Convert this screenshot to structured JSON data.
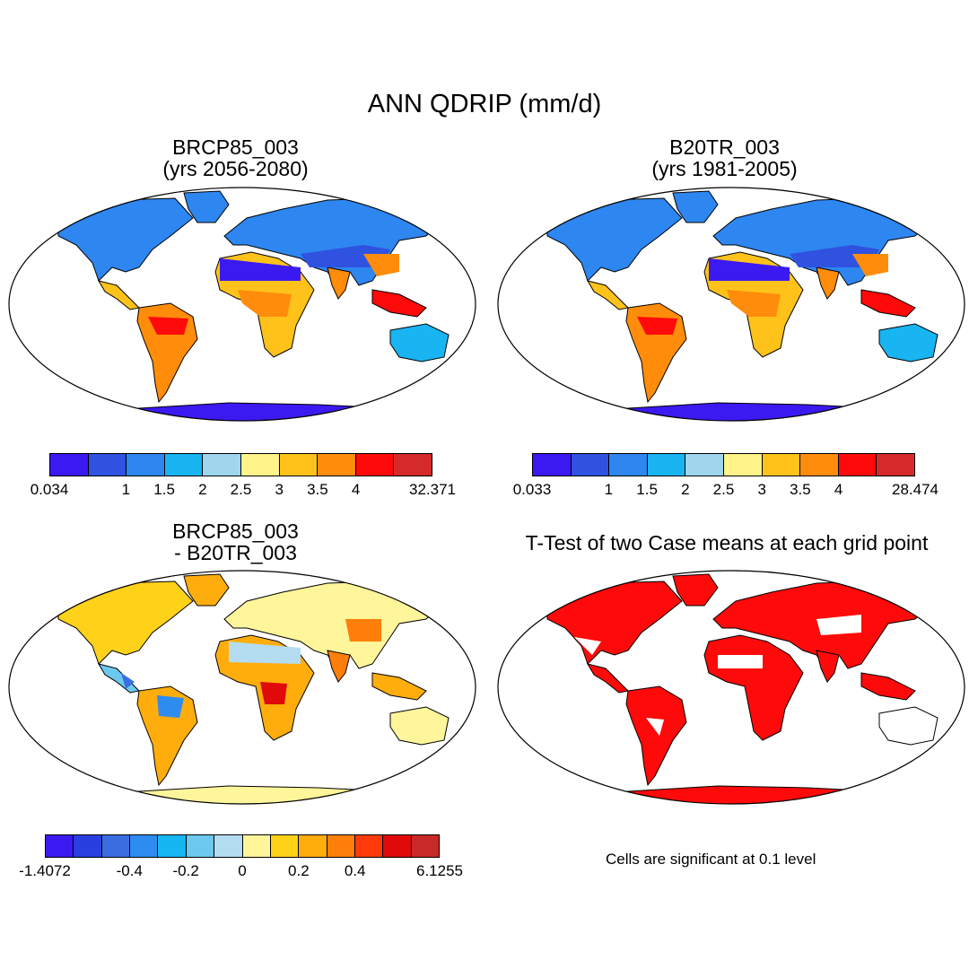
{
  "title": "ANN QDRIP (mm/d)",
  "panels": [
    {
      "id": "case1",
      "title_line1": "BRCP85_003",
      "title_line2": "(yrs 2056-2080)",
      "colorbar": {
        "colors": [
          "#3b1af2",
          "#2f52e0",
          "#2e86f0",
          "#19b4f2",
          "#9fd6ee",
          "#fff38a",
          "#ffc21a",
          "#ff8c0a",
          "#ff0a0a",
          "#d42a2a"
        ],
        "labels": [
          "0.034",
          "1",
          "1.5",
          "2",
          "2.5",
          "3",
          "3.5",
          "4",
          "32.371"
        ]
      }
    },
    {
      "id": "case2",
      "title_line1": "B20TR_003",
      "title_line2": "(yrs 1981-2005)",
      "colorbar": {
        "colors": [
          "#3b1af2",
          "#2f52e0",
          "#2e86f0",
          "#19b4f2",
          "#9fd6ee",
          "#fff38a",
          "#ffc21a",
          "#ff8c0a",
          "#ff0a0a",
          "#d42a2a"
        ],
        "labels": [
          "0.033",
          "1",
          "1.5",
          "2",
          "2.5",
          "3",
          "3.5",
          "4",
          "28.474"
        ]
      }
    },
    {
      "id": "diff",
      "title_line1": "BRCP85_003",
      "title_line2": "- B20TR_003",
      "colorbar": {
        "colors": [
          "#3b1af2",
          "#2a3fe0",
          "#3a6ee0",
          "#2e8cf0",
          "#16b6f2",
          "#6cc8ef",
          "#b3dcf0",
          "#fff59a",
          "#ffd21a",
          "#ffad0d",
          "#ff7f0a",
          "#ff3a0a",
          "#e00a0a",
          "#c82a2a"
        ],
        "labels": [
          "-1.4072",
          "-0.4",
          "-0.2",
          "0",
          "0.2",
          "0.4",
          "6.1255"
        ]
      }
    },
    {
      "id": "ttest",
      "title_line1": "T-Test of two Case means at each grid point",
      "note": "Cells are significant at 0.1 level"
    }
  ],
  "legend_colors": {
    "ocean": "#ffffff",
    "significant": "#ff0a0a"
  }
}
